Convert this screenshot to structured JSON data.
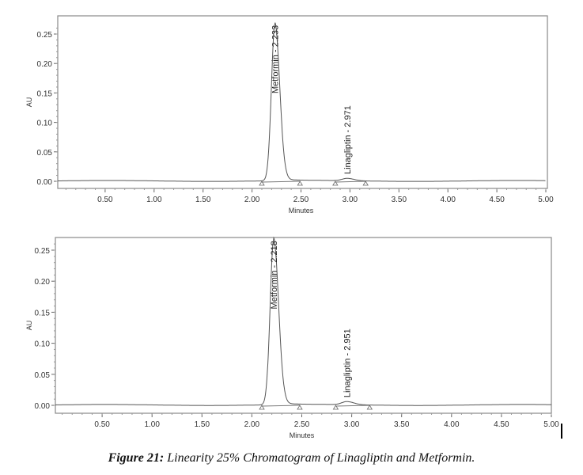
{
  "caption": {
    "label": "Figure 21:",
    "text": " Linearity 25% Chromatogram of Linagliptin and Metformin."
  },
  "chart_data": [
    {
      "type": "line",
      "xlabel": "Minutes",
      "ylabel": "AU",
      "xlim": [
        0,
        5
      ],
      "ylim": [
        -0.01,
        0.28
      ],
      "xticks": [
        "0.50",
        "1.00",
        "1.50",
        "2.00",
        "2.50",
        "3.00",
        "3.50",
        "4.00",
        "4.50",
        "5.00"
      ],
      "yticks": [
        "0.00",
        "0.05",
        "0.10",
        "0.15",
        "0.20",
        "0.25"
      ],
      "peaks": [
        {
          "name": "Metformin - 2.233",
          "rt": 2.233,
          "height": 0.265,
          "start": 2.1,
          "end": 2.49
        },
        {
          "name": "Linagliptin - 2.971",
          "rt": 2.971,
          "height": 0.004,
          "start": 2.85,
          "end": 3.16
        }
      ]
    },
    {
      "type": "line",
      "xlabel": "Minutes",
      "ylabel": "AU",
      "xlim": [
        0,
        5
      ],
      "ylim": [
        -0.01,
        0.28
      ],
      "xticks": [
        "0.50",
        "1.00",
        "1.50",
        "2.00",
        "2.50",
        "3.00",
        "3.50",
        "4.00",
        "4.50",
        "5.00"
      ],
      "yticks": [
        "0.00",
        "0.05",
        "0.10",
        "0.15",
        "0.20",
        "0.25"
      ],
      "peaks": [
        {
          "name": "Metformin - 2.218",
          "rt": 2.218,
          "height": 0.265,
          "start": 2.1,
          "end": 2.48
        },
        {
          "name": "Linagliptin - 2.951",
          "rt": 2.951,
          "height": 0.005,
          "start": 2.84,
          "end": 3.18
        }
      ]
    }
  ]
}
